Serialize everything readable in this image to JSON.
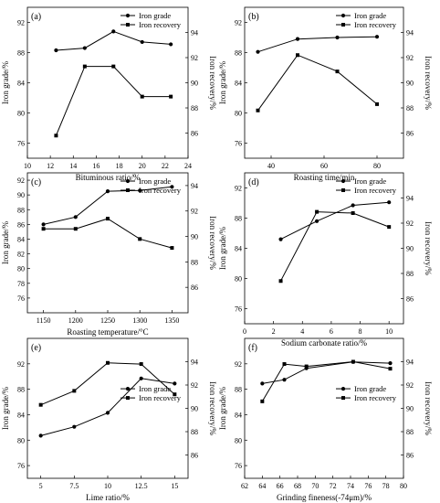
{
  "chart_data": [
    {
      "panel_label": "(a)",
      "type": "line",
      "xlabel": "Bituminous ratio/%",
      "ylabel_left": "Iron grade/%",
      "ylabel_right": "Iron recovery/%",
      "xlim": [
        10,
        24
      ],
      "xticks": [
        10,
        12,
        14,
        16,
        18,
        20,
        22,
        24
      ],
      "ylim_left": [
        74,
        94
      ],
      "yticks_left": [
        76,
        80,
        84,
        88,
        92
      ],
      "ylim_right": [
        84,
        96
      ],
      "yticks_right": [
        86,
        88,
        90,
        92,
        94
      ],
      "legend_position": "top-right",
      "series": [
        {
          "name": "Iron grade",
          "axis": "left",
          "marker": "circle",
          "x": [
            12.5,
            15,
            17.5,
            20,
            22.5
          ],
          "y": [
            88.3,
            88.6,
            90.8,
            89.4,
            89.1
          ]
        },
        {
          "name": "Iron recovery",
          "axis": "right",
          "marker": "square",
          "x": [
            12.5,
            15,
            17.5,
            20,
            22.5
          ],
          "y": [
            85.8,
            91.3,
            91.3,
            88.9,
            88.9
          ]
        }
      ]
    },
    {
      "panel_label": "(b)",
      "type": "line",
      "xlabel": "Roasting time/min",
      "ylabel_left": "Iron grade/%",
      "ylabel_right": "Iron recovery/%",
      "xlim": [
        30,
        90
      ],
      "xticks": [
        40,
        60,
        80
      ],
      "ylim_left": [
        74,
        94
      ],
      "yticks_left": [
        76,
        80,
        84,
        88,
        92
      ],
      "ylim_right": [
        84,
        96
      ],
      "yticks_right": [
        86,
        88,
        90,
        92,
        94
      ],
      "legend_position": "top-right",
      "series": [
        {
          "name": "Iron grade",
          "axis": "left",
          "marker": "circle",
          "x": [
            35,
            50,
            65,
            80
          ],
          "y": [
            88.1,
            89.8,
            90.0,
            90.1
          ]
        },
        {
          "name": "Iron recovery",
          "axis": "right",
          "marker": "square",
          "x": [
            35,
            50,
            65,
            80
          ],
          "y": [
            87.8,
            92.2,
            90.9,
            88.3
          ]
        }
      ]
    },
    {
      "panel_label": "(c)",
      "type": "line",
      "xlabel": "Roasting temperature/°C",
      "ylabel_left": "Iron grade/%",
      "ylabel_right": "Iron recovery/%",
      "xlim": [
        1125,
        1375
      ],
      "xticks": [
        1150,
        1200,
        1250,
        1300,
        1350
      ],
      "ylim_left": [
        74,
        93
      ],
      "yticks_left": [
        76,
        78,
        80,
        82,
        84,
        86,
        88,
        90,
        92
      ],
      "ylim_right": [
        84,
        95
      ],
      "yticks_right": [
        86,
        88,
        90,
        92,
        94
      ],
      "legend_position": "top-right",
      "series": [
        {
          "name": "Iron grade",
          "axis": "left",
          "marker": "circle",
          "x": [
            1150,
            1200,
            1250,
            1300,
            1350
          ],
          "y": [
            86.0,
            87.0,
            90.5,
            90.6,
            91.1
          ]
        },
        {
          "name": "Iron recovery",
          "axis": "right",
          "marker": "square",
          "x": [
            1150,
            1200,
            1250,
            1300,
            1350
          ],
          "y": [
            90.6,
            90.6,
            91.4,
            89.8,
            89.1
          ]
        }
      ]
    },
    {
      "panel_label": "(d)",
      "type": "line",
      "xlabel": "Sodium carbonate ratio/%",
      "ylabel_left": "Iron grade/%",
      "ylabel_right": "Iron recovery/%",
      "xlim": [
        0,
        11
      ],
      "xticks": [
        0,
        2,
        4,
        6,
        8,
        10
      ],
      "ylim_left": [
        74,
        94
      ],
      "yticks_left": [
        76,
        80,
        84,
        88,
        92
      ],
      "ylim_right": [
        84,
        96
      ],
      "yticks_right": [
        86,
        88,
        90,
        92,
        94
      ],
      "legend_position": "top-right",
      "series": [
        {
          "name": "Iron grade",
          "axis": "left",
          "marker": "circle",
          "x": [
            2.5,
            5,
            7.5,
            10
          ],
          "y": [
            85.2,
            87.6,
            89.7,
            90.1
          ]
        },
        {
          "name": "Iron recovery",
          "axis": "right",
          "marker": "square",
          "x": [
            2.5,
            5,
            7.5,
            10
          ],
          "y": [
            87.4,
            92.9,
            92.8,
            91.7
          ]
        }
      ]
    },
    {
      "panel_label": "(e)",
      "type": "line",
      "xlabel": "Lime ratio/%",
      "ylabel_left": "Iron grade/%",
      "ylabel_right": "Iron recovery/%",
      "xlim": [
        4,
        16
      ],
      "xticks": [
        5.0,
        7.5,
        10.0,
        12.5,
        15.0
      ],
      "ylim_left": [
        74,
        96
      ],
      "yticks_left": [
        76,
        80,
        84,
        88,
        92
      ],
      "ylim_right": [
        84,
        96
      ],
      "yticks_right": [
        86,
        88,
        90,
        92,
        94
      ],
      "legend_position": "center-right",
      "series": [
        {
          "name": "Iron grade",
          "axis": "left",
          "marker": "circle",
          "x": [
            5,
            7.5,
            10,
            12.5,
            15
          ],
          "y": [
            80.7,
            82.1,
            84.3,
            89.7,
            88.9
          ]
        },
        {
          "name": "Iron recovery",
          "axis": "right",
          "marker": "square",
          "x": [
            5,
            7.5,
            10,
            12.5,
            15
          ],
          "y": [
            90.3,
            91.5,
            93.9,
            93.8,
            91.2
          ]
        }
      ]
    },
    {
      "panel_label": "(f)",
      "type": "line",
      "xlabel": "Grinding fineness(-74μm)/%",
      "ylabel_left": "Iron grade/%",
      "ylabel_right": "Iron recovery/%",
      "xlim": [
        62,
        80
      ],
      "xticks": [
        62,
        64,
        66,
        68,
        70,
        72,
        74,
        76,
        78,
        80
      ],
      "ylim_left": [
        74,
        96
      ],
      "yticks_left": [
        76,
        80,
        84,
        88,
        92
      ],
      "ylim_right": [
        84,
        96
      ],
      "yticks_right": [
        86,
        88,
        90,
        92,
        94
      ],
      "legend_position": "center-right",
      "series": [
        {
          "name": "Iron grade",
          "axis": "left",
          "marker": "circle",
          "x": [
            64,
            66.5,
            69,
            74.3,
            78.5
          ],
          "y": [
            88.9,
            89.5,
            91.3,
            92.3,
            92.1
          ]
        },
        {
          "name": "Iron recovery",
          "axis": "right",
          "marker": "square",
          "x": [
            64,
            66.5,
            69,
            74.3,
            78.5
          ],
          "y": [
            90.6,
            93.8,
            93.6,
            94.0,
            93.4
          ]
        }
      ]
    }
  ]
}
